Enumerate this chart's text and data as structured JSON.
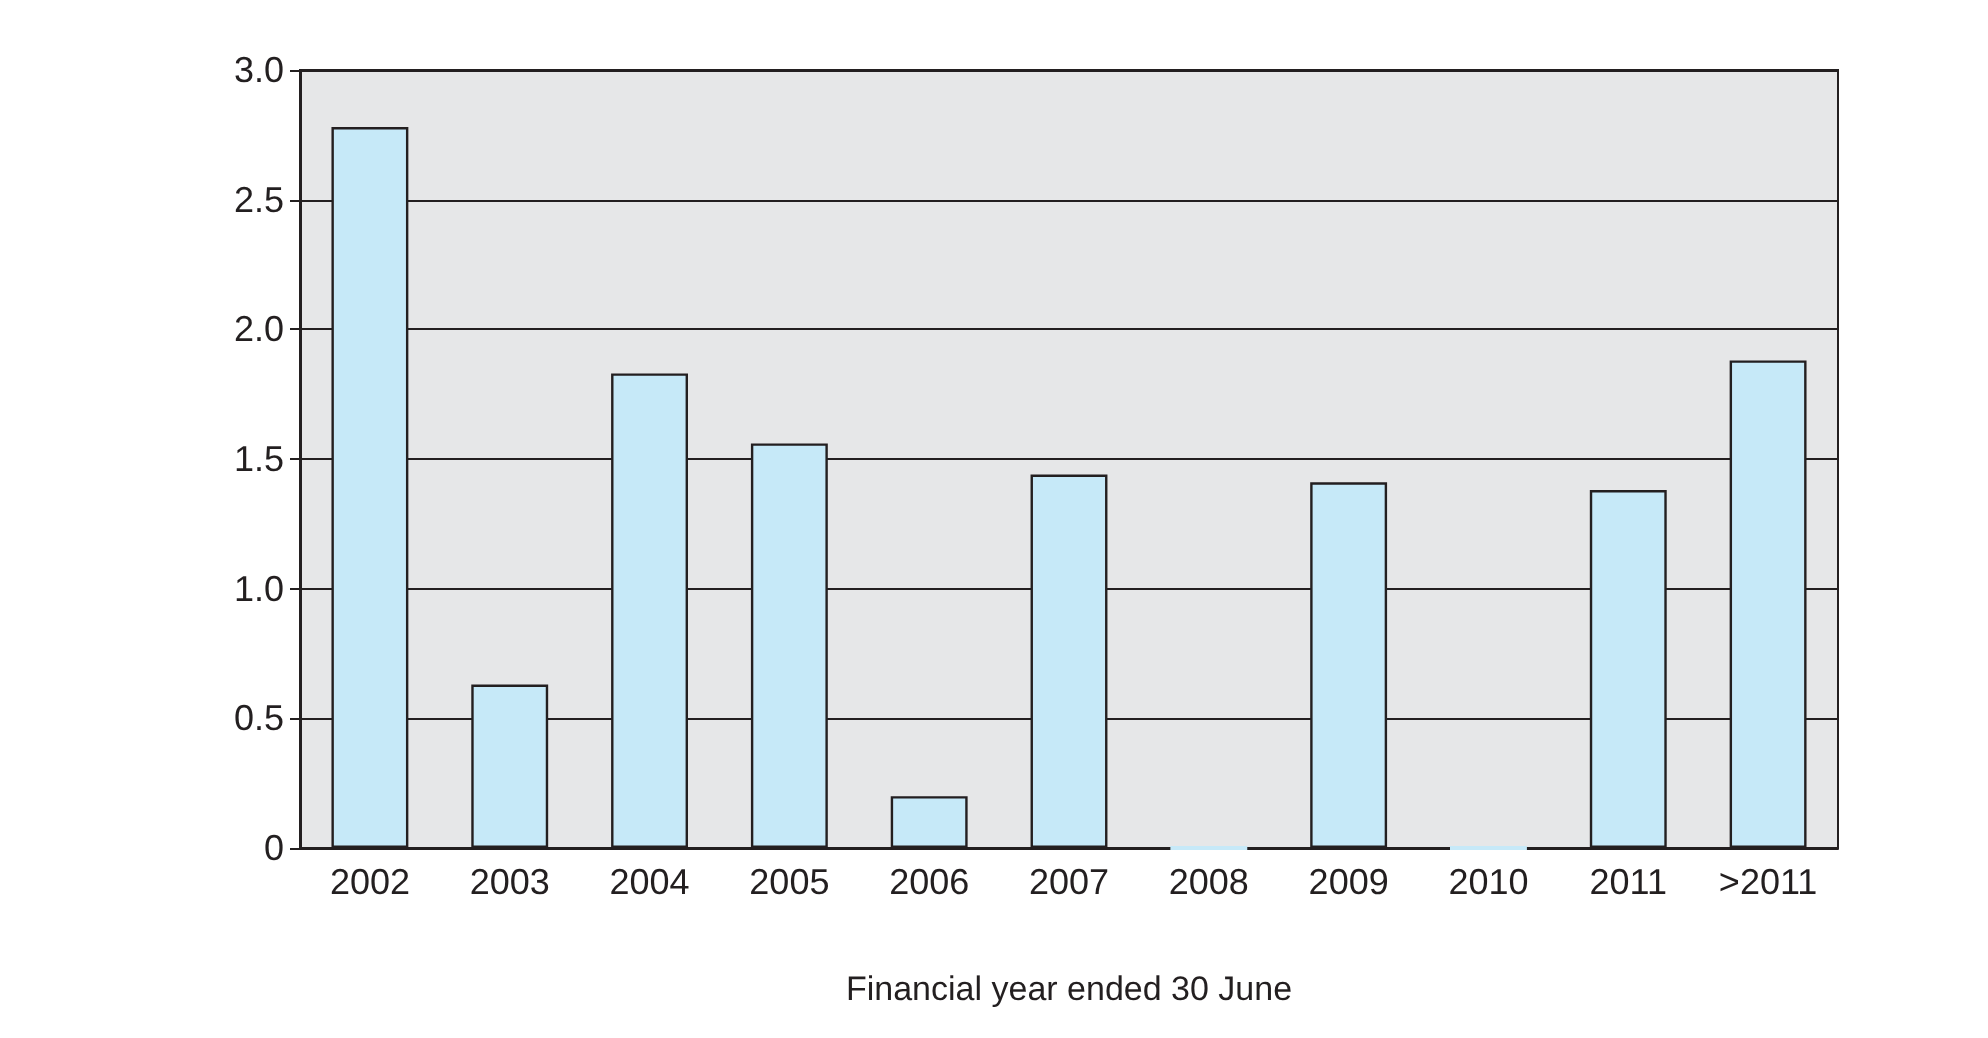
{
  "chart_data": {
    "type": "bar",
    "xlabel": "Financial year ended 30 June",
    "categories": [
      "2002",
      "2003",
      "2004",
      "2005",
      "2006",
      "2007",
      "2008",
      "2009",
      "2010",
      "2011",
      ">2011"
    ],
    "values": [
      2.78,
      0.63,
      1.83,
      1.56,
      0.2,
      1.44,
      0,
      1.41,
      0,
      1.38,
      1.88
    ],
    "color": "#c6e9f8",
    "ylim": [
      0,
      3
    ],
    "yticks": [
      0,
      0.5,
      {
        "value": 1,
        "label": "1.0"
      },
      1.5,
      {
        "value": 2,
        "label": "2.0"
      },
      2.5,
      {
        "value": 3,
        "label": "3.0"
      }
    ],
    "grid": "y"
  }
}
